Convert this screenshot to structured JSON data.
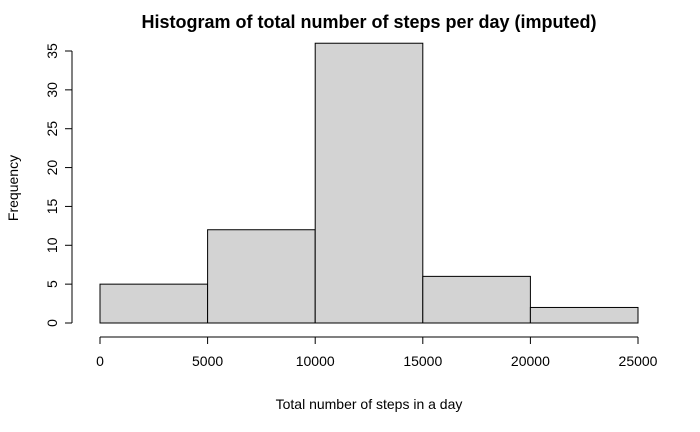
{
  "chart_data": {
    "type": "bar",
    "title": "Histogram of total number of steps per day (imputed)",
    "xlabel": "Total number of steps in a day",
    "ylabel": "Frequency",
    "bins": [
      {
        "start": 0,
        "end": 5000,
        "count": 5
      },
      {
        "start": 5000,
        "end": 10000,
        "count": 12
      },
      {
        "start": 10000,
        "end": 15000,
        "count": 36
      },
      {
        "start": 15000,
        "end": 20000,
        "count": 6
      },
      {
        "start": 20000,
        "end": 25000,
        "count": 2
      }
    ],
    "xlim": [
      0,
      25000
    ],
    "ylim": [
      0,
      35
    ],
    "xticks": [
      "0",
      "5000",
      "10000",
      "15000",
      "20000",
      "25000"
    ],
    "yticks": [
      "0",
      "5",
      "10",
      "15",
      "20",
      "25",
      "30",
      "35"
    ],
    "grid": false,
    "bar_color": "#d3d3d3",
    "edge_color": "#000000"
  }
}
